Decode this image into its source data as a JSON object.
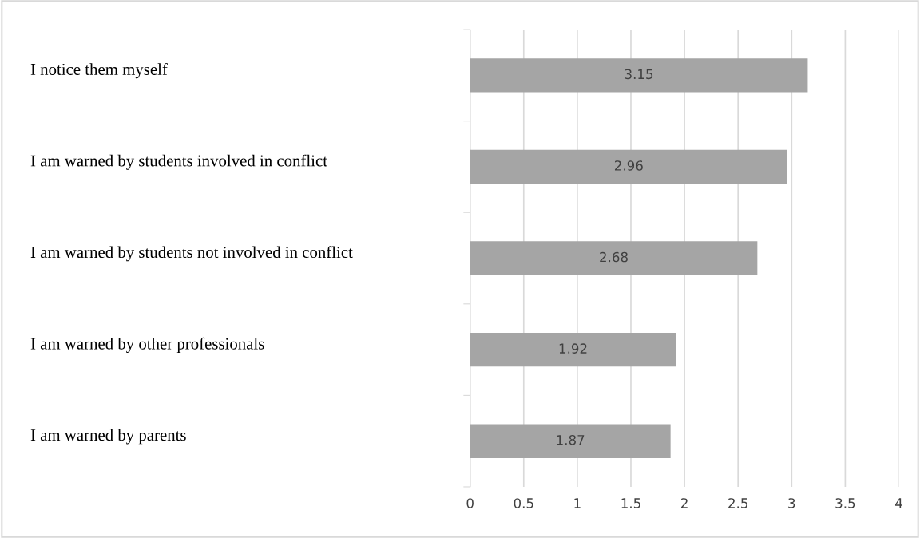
{
  "chart_data": {
    "type": "bar",
    "orientation": "horizontal",
    "categories": [
      "I notice them myself",
      "I am warned by students involved in conflict",
      "I am warned by students not involved in conflict",
      "I am warned by other professionals",
      "I am warned by parents"
    ],
    "values": [
      3.15,
      2.96,
      2.68,
      1.92,
      1.87
    ],
    "color": "#a5a5a5",
    "xlim": [
      0,
      4
    ],
    "xticks": [
      0,
      0.5,
      1,
      1.5,
      2,
      2.5,
      3,
      3.5,
      4
    ],
    "grid": "x",
    "data_labels": true,
    "legend": false
  }
}
